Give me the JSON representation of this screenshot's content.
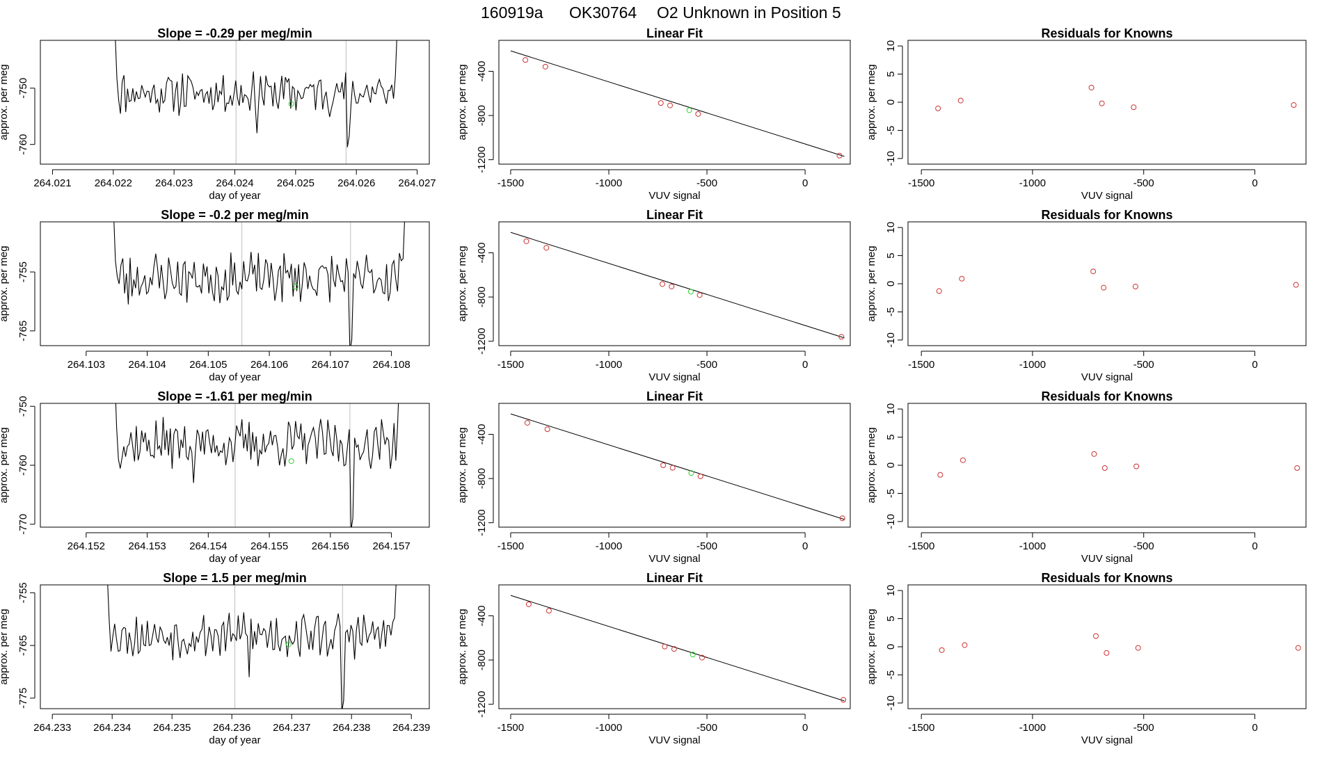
{
  "figure": {
    "title_parts": [
      "160919a",
      "OK30764",
      "O2 Unknown in Position  5"
    ]
  },
  "style": {
    "line_color": "#000000",
    "known_color": "#cd3333",
    "unknown_color": "#32cd32",
    "guide_color": "#bebebe"
  },
  "chart_data": [
    {
      "type": "line",
      "panel": "timeseries",
      "row": 1,
      "title": "Slope =  -0.29  per meg/min",
      "xlabel": "day of year",
      "ylabel": "approx. per meg",
      "xlim": [
        264.0208,
        264.0272
      ],
      "ylim": [
        -763.5,
        -741.5
      ],
      "x_ticks": [
        "264.021",
        "264.022",
        "264.023",
        "264.024",
        "264.025",
        "264.026",
        "264.027"
      ],
      "x_tick_values": [
        264.021,
        264.022,
        264.023,
        264.024,
        264.025,
        264.026,
        264.027
      ],
      "y_ticks": [
        "-750",
        "-760"
      ],
      "y_tick_values": [
        -750,
        -760
      ],
      "x_start": 264.02203,
      "x_end": 264.02667,
      "n_points": 160,
      "y_mean": -750.8,
      "y_amplitude": 3.2,
      "seed": 11,
      "edge_left_y": -740,
      "edge_right_y": -740,
      "dip_positions": [
        264.02585,
        264.02435
      ],
      "dip_values": [
        -760.5,
        -758.0
      ],
      "vlines": [
        264.02402,
        264.02583
      ],
      "unknown_point": {
        "x": 264.02493,
        "y": -752.8
      }
    },
    {
      "type": "scatter",
      "panel": "linear-fit",
      "row": 1,
      "title": "Linear Fit",
      "xlabel": "VUV signal",
      "ylabel": "approx. per meg",
      "xlim": [
        -1560,
        230
      ],
      "ylim": [
        -1240,
        -120
      ],
      "x_ticks": [
        "-1500",
        "-1000",
        "-500",
        "0"
      ],
      "x_tick_values": [
        -1500,
        -1000,
        -500,
        0
      ],
      "y_ticks": [
        "-400",
        "-800",
        "-1200"
      ],
      "y_tick_values": [
        -400,
        -800,
        -1200
      ],
      "fit_line": {
        "x": [
          -1500,
          200
        ],
        "y": [
          -215,
          -1170
        ]
      },
      "known_points": {
        "x": [
          -1425,
          -1323,
          -735,
          -688,
          -545,
          175
        ],
        "y": [
          -298,
          -358,
          -687,
          -709,
          -786,
          -1163
        ]
      },
      "unknown_points": {
        "x": [
          -590
        ],
        "y": [
          -752
        ]
      }
    },
    {
      "type": "scatter",
      "panel": "residuals",
      "row": 1,
      "title": "Residuals for Knowns",
      "xlabel": "VUV signal",
      "ylabel": "approx. per meg",
      "xlim": [
        -1560,
        230
      ],
      "ylim": [
        -11,
        11
      ],
      "x_ticks": [
        "-1500",
        "-1000",
        "-500",
        "0"
      ],
      "x_tick_values": [
        -1500,
        -1000,
        -500,
        0
      ],
      "y_ticks": [
        "10",
        "5",
        "0",
        "-5",
        "-10"
      ],
      "y_tick_values": [
        10,
        5,
        0,
        -5,
        -10
      ],
      "known_points": {
        "x": [
          -1425,
          -1323,
          -735,
          -688,
          -545,
          175
        ],
        "y": [
          -1.1,
          0.3,
          2.6,
          -0.2,
          -0.9,
          -0.5
        ]
      }
    },
    {
      "type": "line",
      "panel": "timeseries",
      "row": 2,
      "title": "Slope =  -0.2  per meg/min",
      "xlabel": "day of year",
      "ylabel": "approx. per meg",
      "xlim": [
        264.10225,
        264.10862
      ],
      "ylim": [
        -767.5,
        -746.5
      ],
      "x_ticks": [
        "264.103",
        "264.104",
        "264.105",
        "264.106",
        "264.107",
        "264.108"
      ],
      "x_tick_values": [
        264.103,
        264.104,
        264.105,
        264.106,
        264.107,
        264.108
      ],
      "y_ticks": [
        "-755",
        "-765"
      ],
      "y_tick_values": [
        -755,
        -765
      ],
      "x_start": 264.10345,
      "x_end": 264.10822,
      "n_points": 160,
      "y_mean": -756.0,
      "y_amplitude": 3.6,
      "seed": 23,
      "edge_left_y": -745,
      "edge_right_y": -745,
      "dip_positions": [
        264.10732,
        264.10368
      ],
      "dip_values": [
        -768.5,
        -760.5
      ],
      "vlines": [
        264.10555,
        264.10733
      ],
      "unknown_point": {
        "x": 264.10643,
        "y": -757.5
      }
    },
    {
      "type": "scatter",
      "panel": "linear-fit",
      "row": 2,
      "title": "Linear Fit",
      "xlabel": "VUV signal",
      "ylabel": "approx. per meg",
      "xlim": [
        -1560,
        230
      ],
      "ylim": [
        -1240,
        -120
      ],
      "x_ticks": [
        "-1500",
        "-1000",
        "-500",
        "0"
      ],
      "x_tick_values": [
        -1500,
        -1000,
        -500,
        0
      ],
      "y_ticks": [
        "-400",
        "-800",
        "-1200"
      ],
      "y_tick_values": [
        -400,
        -800,
        -1200
      ],
      "fit_line": {
        "x": [
          -1500,
          200
        ],
        "y": [
          -215,
          -1170
        ]
      },
      "known_points": {
        "x": [
          -1420,
          -1318,
          -727,
          -680,
          -537,
          185
        ],
        "y": [
          -296,
          -355,
          -683,
          -705,
          -782,
          -1160
        ]
      },
      "unknown_points": {
        "x": [
          -582
        ],
        "y": [
          -752
        ]
      }
    },
    {
      "type": "scatter",
      "panel": "residuals",
      "row": 2,
      "title": "Residuals for Knowns",
      "xlabel": "VUV signal",
      "ylabel": "approx. per meg",
      "xlim": [
        -1560,
        230
      ],
      "ylim": [
        -11,
        11
      ],
      "x_ticks": [
        "-1500",
        "-1000",
        "-500",
        "0"
      ],
      "x_tick_values": [
        -1500,
        -1000,
        -500,
        0
      ],
      "y_ticks": [
        "10",
        "5",
        "0",
        "-5",
        "-10"
      ],
      "y_tick_values": [
        10,
        5,
        0,
        -5,
        -10
      ],
      "known_points": {
        "x": [
          -1420,
          -1318,
          -727,
          -680,
          -537,
          185
        ],
        "y": [
          -1.3,
          0.9,
          2.2,
          -0.7,
          -0.5,
          -0.2
        ]
      }
    },
    {
      "type": "line",
      "panel": "timeseries",
      "row": 3,
      "title": "Slope =  -1.61  per meg/min",
      "xlabel": "day of year",
      "ylabel": "approx. per meg",
      "xlim": [
        264.15125,
        264.15762
      ],
      "ylim": [
        -770.5,
        -749.5
      ],
      "x_ticks": [
        "264.152",
        "264.153",
        "264.154",
        "264.155",
        "264.156",
        "264.157"
      ],
      "x_tick_values": [
        264.152,
        264.153,
        264.154,
        264.155,
        264.156,
        264.157
      ],
      "y_ticks": [
        "-750",
        "-760",
        "-770"
      ],
      "y_tick_values": [
        -750,
        -760,
        -770
      ],
      "x_start": 264.15247,
      "x_end": 264.15713,
      "n_points": 160,
      "y_mean": -756.3,
      "y_amplitude": 3.4,
      "seed": 37,
      "edge_left_y": -745,
      "edge_right_y": -745,
      "dip_positions": [
        264.15633,
        264.15375
      ],
      "dip_values": [
        -771.0,
        -763.0
      ],
      "vlines": [
        264.15444,
        264.15632
      ],
      "unknown_point": {
        "x": 264.15536,
        "y": -759.3
      }
    },
    {
      "type": "scatter",
      "panel": "linear-fit",
      "row": 3,
      "title": "Linear Fit",
      "xlabel": "VUV signal",
      "ylabel": "approx. per meg",
      "xlim": [
        -1560,
        230
      ],
      "ylim": [
        -1240,
        -120
      ],
      "x_ticks": [
        "-1500",
        "-1000",
        "-500",
        "0"
      ],
      "x_tick_values": [
        -1500,
        -1000,
        -500,
        0
      ],
      "y_ticks": [
        "-400",
        "-800",
        "-1200"
      ],
      "y_tick_values": [
        -400,
        -800,
        -1200
      ],
      "fit_line": {
        "x": [
          -1500,
          200
        ],
        "y": [
          -215,
          -1170
        ]
      },
      "known_points": {
        "x": [
          -1415,
          -1313,
          -723,
          -675,
          -533,
          190
        ],
        "y": [
          -296,
          -354,
          -680,
          -703,
          -780,
          -1160
        ]
      },
      "unknown_points": {
        "x": [
          -580
        ],
        "y": [
          -750
        ]
      }
    },
    {
      "type": "scatter",
      "panel": "residuals",
      "row": 3,
      "title": "Residuals for Knowns",
      "xlabel": "VUV signal",
      "ylabel": "approx. per meg",
      "xlim": [
        -1560,
        230
      ],
      "ylim": [
        -11,
        11
      ],
      "x_ticks": [
        "-1500",
        "-1000",
        "-500",
        "0"
      ],
      "x_tick_values": [
        -1500,
        -1000,
        -500,
        0
      ],
      "y_ticks": [
        "10",
        "5",
        "0",
        "-5",
        "-10"
      ],
      "y_tick_values": [
        10,
        5,
        0,
        -5,
        -10
      ],
      "known_points": {
        "x": [
          -1415,
          -1313,
          -723,
          -675,
          -533,
          190
        ],
        "y": [
          -1.7,
          0.9,
          2.0,
          -0.5,
          -0.2,
          -0.5
        ]
      }
    },
    {
      "type": "line",
      "panel": "timeseries",
      "row": 4,
      "title": "Slope =  1.5  per meg/min",
      "xlabel": "day of year",
      "ylabel": "approx. per meg",
      "xlim": [
        264.2328,
        264.2393
      ],
      "ylim": [
        -777,
        -753.5
      ],
      "x_ticks": [
        "264.233",
        "264.234",
        "264.235",
        "264.236",
        "264.237",
        "264.238",
        "264.239"
      ],
      "x_tick_values": [
        264.233,
        264.234,
        264.235,
        264.236,
        264.237,
        264.238,
        264.239
      ],
      "y_ticks": [
        "-755",
        "-765",
        "-775"
      ],
      "y_tick_values": [
        -755,
        -765,
        -775
      ],
      "x_start": 264.23392,
      "x_end": 264.23875,
      "n_points": 160,
      "y_mean": -763.0,
      "y_amplitude": 3.6,
      "seed": 53,
      "edge_left_y": -752,
      "edge_right_y": -752,
      "dip_positions": [
        264.23785,
        264.23628
      ],
      "dip_values": [
        -777.5,
        -771.0
      ],
      "vlines": [
        264.23605,
        264.23785
      ],
      "unknown_point": {
        "x": 264.23695,
        "y": -764.8
      }
    },
    {
      "type": "scatter",
      "panel": "linear-fit",
      "row": 4,
      "title": "Linear Fit",
      "xlabel": "VUV signal",
      "ylabel": "approx. per meg",
      "xlim": [
        -1560,
        230
      ],
      "ylim": [
        -1240,
        -120
      ],
      "x_ticks": [
        "-1500",
        "-1000",
        "-500",
        "0"
      ],
      "x_tick_values": [
        -1500,
        -1000,
        -500,
        0
      ],
      "y_ticks": [
        "-400",
        "-800",
        "-1200"
      ],
      "y_tick_values": [
        -400,
        -800,
        -1200
      ],
      "fit_line": {
        "x": [
          -1500,
          200
        ],
        "y": [
          -215,
          -1170
        ]
      },
      "known_points": {
        "x": [
          -1408,
          -1305,
          -715,
          -667,
          -525,
          195
        ],
        "y": [
          -296,
          -354,
          -678,
          -700,
          -778,
          -1160
        ]
      },
      "unknown_points": {
        "x": [
          -572
        ],
        "y": [
          -750
        ]
      }
    },
    {
      "type": "scatter",
      "panel": "residuals",
      "row": 4,
      "title": "Residuals for Knowns",
      "xlabel": "VUV signal",
      "ylabel": "approx. per meg",
      "xlim": [
        -1560,
        230
      ],
      "ylim": [
        -11,
        11
      ],
      "x_ticks": [
        "-1500",
        "-1000",
        "-500",
        "0"
      ],
      "x_tick_values": [
        -1500,
        -1000,
        -500,
        0
      ],
      "y_ticks": [
        "10",
        "5",
        "0",
        "-5",
        "-10"
      ],
      "y_tick_values": [
        10,
        5,
        0,
        -5,
        -10
      ],
      "known_points": {
        "x": [
          -1408,
          -1305,
          -715,
          -667,
          -525,
          195
        ],
        "y": [
          -0.6,
          0.3,
          1.9,
          -1.1,
          -0.2,
          -0.2
        ]
      }
    }
  ]
}
